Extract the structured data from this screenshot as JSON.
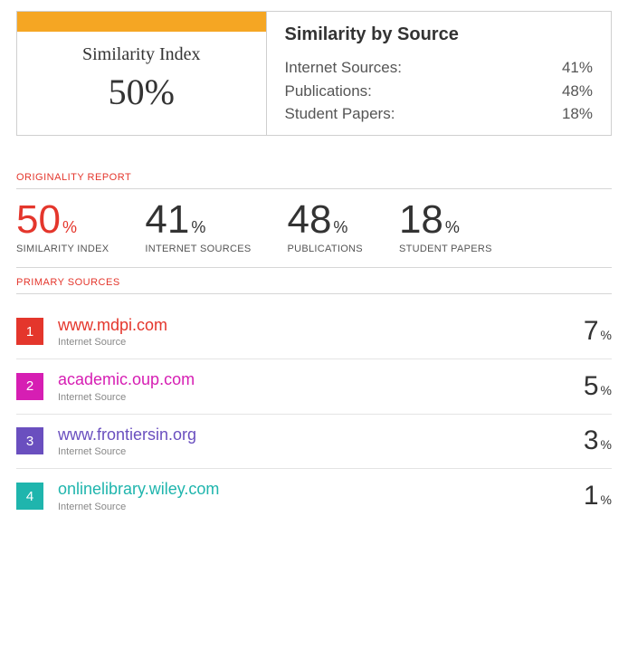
{
  "summary_box": {
    "index_label": "Similarity Index",
    "index_value": "50%",
    "by_source_title": "Similarity by Source",
    "rows": [
      {
        "label": "Internet Sources:",
        "value": "41%"
      },
      {
        "label": "Publications:",
        "value": "48%"
      },
      {
        "label": "Student Papers:",
        "value": "18%"
      }
    ],
    "orange_color": "#f5a623",
    "border_color": "#cfcfcf"
  },
  "report": {
    "section_label": "ORIGINALITY REPORT",
    "accent_color": "#e4362c",
    "metrics": [
      {
        "value": "50",
        "label": "SIMILARITY INDEX",
        "primary": true
      },
      {
        "value": "41",
        "label": "INTERNET SOURCES",
        "primary": false
      },
      {
        "value": "48",
        "label": "PUBLICATIONS",
        "primary": false
      },
      {
        "value": "18",
        "label": "STUDENT PAPERS",
        "primary": false
      }
    ],
    "percent_sign": "%"
  },
  "primary_sources": {
    "section_label": "PRIMARY SOURCES",
    "type_label": "Internet Source",
    "percent_sign": "%",
    "items": [
      {
        "rank": "1",
        "name": "www.mdpi.com",
        "pct": "7",
        "color": "#e4362c",
        "text_color": "#e4362c"
      },
      {
        "rank": "2",
        "name": "academic.oup.com",
        "pct": "5",
        "color": "#d61eb3",
        "text_color": "#d61eb3"
      },
      {
        "rank": "3",
        "name": "www.frontiersin.org",
        "pct": "3",
        "color": "#6a4fbf",
        "text_color": "#6a4fbf"
      },
      {
        "rank": "4",
        "name": "onlinelibrary.wiley.com",
        "pct": "1",
        "color": "#1fb5ad",
        "text_color": "#1fb5ad"
      }
    ]
  }
}
